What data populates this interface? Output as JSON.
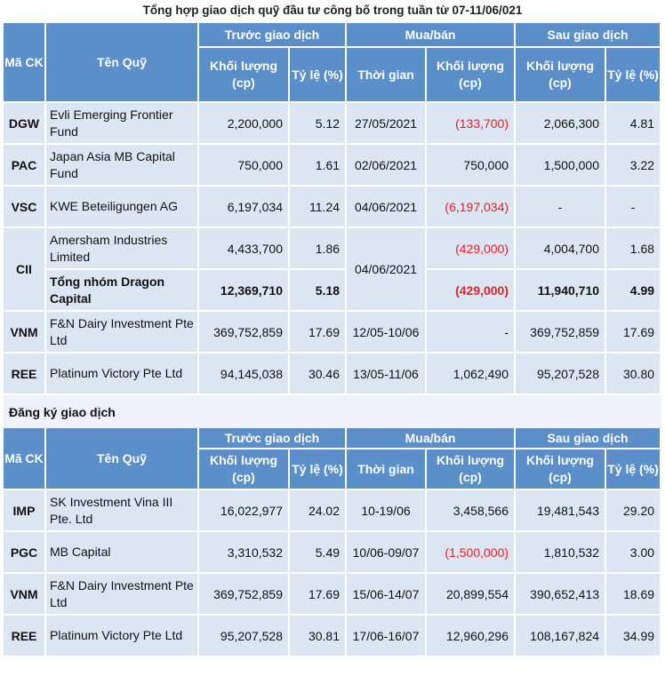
{
  "title": "Tổng hợp giao dịch quỹ đầu tư công bố trong tuần từ 07-11/06/021",
  "headers": {
    "code": "Mã CK",
    "fund": "Tên Quỹ",
    "before": "Trước giao dịch",
    "trade": "Mua/bán",
    "after": "Sau giao dịch",
    "volume": "Khối lượng (cp)",
    "ratio": "Tỷ lệ (%)",
    "time": "Thời gian"
  },
  "section2_title": "Đăng ký giao dịch",
  "colors": {
    "header_bg": "#5b8fc9",
    "row_bg": "#dce6f2",
    "negative": "#e0202a"
  },
  "table1": [
    {
      "code": "DGW",
      "fund": "Evli Emerging Frontier Fund",
      "before_vol": "2,200,000",
      "before_ratio": "5.12",
      "time": "27/05/2021",
      "trade_vol": "(133,700)",
      "after_vol": "2,066,300",
      "after_ratio": "4.81"
    },
    {
      "code": "PAC",
      "fund": "Japan Asia MB Capital Fund",
      "before_vol": "750,000",
      "before_ratio": "1.61",
      "time": "02/06/2021",
      "trade_vol": "750,000",
      "after_vol": "1,500,000",
      "after_ratio": "3.22"
    },
    {
      "code": "VSC",
      "fund": "KWE Beteiligungen AG",
      "before_vol": "6,197,034",
      "before_ratio": "11.24",
      "time": "04/06/2021",
      "trade_vol": "(6,197,034)",
      "after_vol": "-",
      "after_ratio": "-"
    },
    {
      "code": "CII",
      "fund": "Amersham Industries Limited",
      "before_vol": "4,433,700",
      "before_ratio": "1.86",
      "time": "04/06/2021",
      "trade_vol": "(429,000)",
      "after_vol": "4,004,700",
      "after_ratio": "1.68"
    },
    {
      "fund": "Tổng nhóm Dragon Capital",
      "before_vol": "12,369,710",
      "before_ratio": "5.18",
      "trade_vol": "(429,000)",
      "after_vol": "11,940,710",
      "after_ratio": "4.99"
    },
    {
      "code": "VNM",
      "fund": "F&N Dairy Investment Pte Ltd",
      "before_vol": "369,752,859",
      "before_ratio": "17.69",
      "time": "12/05-10/06",
      "trade_vol": "-",
      "after_vol": "369,752,859",
      "after_ratio": "17.69"
    },
    {
      "code": "REE",
      "fund": "Platinum Victory Pte Ltd",
      "before_vol": "94,145,038",
      "before_ratio": "30.46",
      "time": "13/05-11/06",
      "trade_vol": "1,062,490",
      "after_vol": "95,207,528",
      "after_ratio": "30.80"
    }
  ],
  "table2": [
    {
      "code": "IMP",
      "fund": "SK Investment Vina III Pte. Ltd",
      "before_vol": "16,022,977",
      "before_ratio": "24.02",
      "time": "10-19/06",
      "trade_vol": "3,458,566",
      "after_vol": "19,481,543",
      "after_ratio": "29.20"
    },
    {
      "code": "PGC",
      "fund": "MB Capital",
      "before_vol": "3,310,532",
      "before_ratio": "5.49",
      "time": "10/06-09/07",
      "trade_vol": "(1,500,000)",
      "after_vol": "1,810,532",
      "after_ratio": "3.00"
    },
    {
      "code": "VNM",
      "fund": "F&N Dairy Investment Pte Ltd",
      "before_vol": "369,752,859",
      "before_ratio": "17.69",
      "time": "15/06-14/07",
      "trade_vol": "20,899,554",
      "after_vol": "390,652,413",
      "after_ratio": "18.69"
    },
    {
      "code": "REE",
      "fund": "Platinum Victory Pte Ltd",
      "before_vol": "95,207,528",
      "before_ratio": "30.81",
      "time": "17/06-16/07",
      "trade_vol": "12,960,296",
      "after_vol": "108,167,824",
      "after_ratio": "34.99"
    }
  ]
}
